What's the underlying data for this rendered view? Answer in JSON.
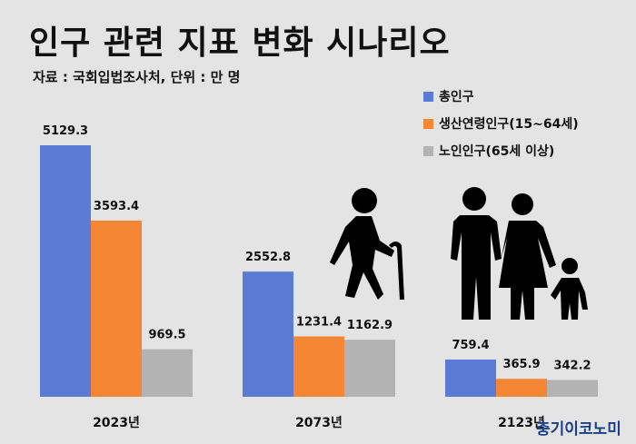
{
  "title": "인구 관련 지표 변화 시나리오",
  "source": "자료 : 국회입법조사처, 단위 : 만 명",
  "logo": "충기이코노미",
  "colors": {
    "total": "#5b7bd5",
    "working": "#f58634",
    "elderly": "#b3b3b3",
    "background": "#e4e4e4"
  },
  "icons": [
    "elderly-person-with-cane-icon",
    "family-icon"
  ],
  "chart_data": {
    "type": "bar",
    "categories": [
      "2023년",
      "2073년",
      "2123년"
    ],
    "series": [
      {
        "name": "총인구",
        "values": [
          5129.3,
          2552.8,
          759.4
        ],
        "labels": [
          "5129.3",
          "2552.8",
          "759.4"
        ]
      },
      {
        "name": "생산연령인구(15~64세)",
        "values": [
          3593.4,
          1231.4,
          365.9
        ],
        "labels": [
          "3593.4",
          "1231.4",
          "365.9"
        ]
      },
      {
        "name": "노인인구(65세 이상)",
        "values": [
          969.5,
          1162.9,
          342.2
        ],
        "labels": [
          "969.5",
          "1162.9",
          "342.2"
        ]
      }
    ],
    "legend_position": "top-right",
    "grid": false
  }
}
